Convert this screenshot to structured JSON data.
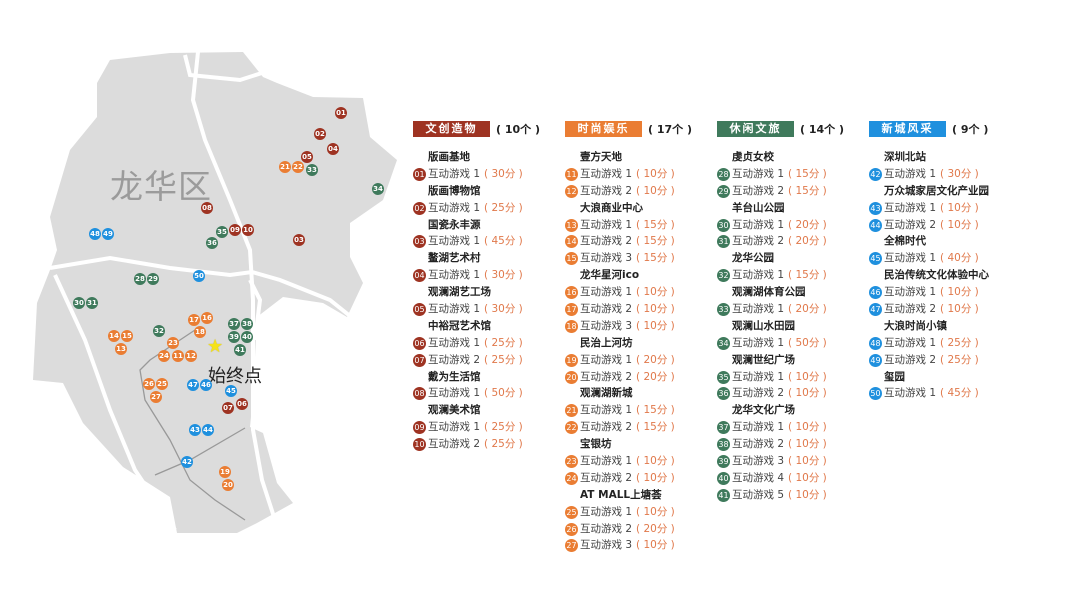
{
  "map": {
    "district_label": "龙华区",
    "origin_label": "始终点",
    "origin_icon": "star-icon"
  },
  "categories": [
    {
      "title": "文创造物",
      "count": "( 10个 )",
      "color": "#9e3322",
      "venues": [
        {
          "name": "版画基地",
          "games": [
            {
              "id": "01",
              "label": "互动游戏 1",
              "time": "( 30分 )"
            }
          ]
        },
        {
          "name": "版画博物馆",
          "games": [
            {
              "id": "02",
              "label": "互动游戏 1",
              "time": "( 25分 )"
            }
          ]
        },
        {
          "name": "国瓷永丰源",
          "games": [
            {
              "id": "03",
              "label": "互动游戏 1",
              "time": "( 45分 )"
            }
          ]
        },
        {
          "name": "鳌湖艺术村",
          "games": [
            {
              "id": "04",
              "label": "互动游戏 1",
              "time": "( 30分 )"
            }
          ]
        },
        {
          "name": "观澜湖艺工场",
          "games": [
            {
              "id": "05",
              "label": "互动游戏 1",
              "time": "( 30分 )"
            }
          ]
        },
        {
          "name": "中裕冠艺术馆",
          "games": [
            {
              "id": "06",
              "label": "互动游戏 1",
              "time": "( 25分 )"
            },
            {
              "id": "07",
              "label": "互动游戏 2",
              "time": "( 25分 )"
            }
          ]
        },
        {
          "name": "戴为生活馆",
          "games": [
            {
              "id": "08",
              "label": "互动游戏 1",
              "time": "( 50分 )"
            }
          ]
        },
        {
          "name": "观澜美术馆",
          "games": [
            {
              "id": "09",
              "label": "互动游戏 1",
              "time": "( 25分 )"
            },
            {
              "id": "10",
              "label": "互动游戏 2",
              "time": "( 25分 )"
            }
          ]
        }
      ]
    },
    {
      "title": "时尚娱乐",
      "count": "( 17个 )",
      "color": "#ea7d33",
      "venues": [
        {
          "name": "壹方天地",
          "games": [
            {
              "id": "11",
              "label": "互动游戏 1",
              "time": "( 10分 )"
            },
            {
              "id": "12",
              "label": "互动游戏 2",
              "time": "( 10分 )"
            }
          ]
        },
        {
          "name": "大浪商业中心",
          "games": [
            {
              "id": "13",
              "label": "互动游戏 1",
              "time": "( 15分 )"
            },
            {
              "id": "14",
              "label": "互动游戏 2",
              "time": "( 15分 )"
            },
            {
              "id": "15",
              "label": "互动游戏 3",
              "time": "( 15分 )"
            }
          ]
        },
        {
          "name": "龙华星河ico",
          "games": [
            {
              "id": "16",
              "label": "互动游戏 1",
              "time": "( 10分 )"
            },
            {
              "id": "17",
              "label": "互动游戏 2",
              "time": "( 10分 )"
            },
            {
              "id": "18",
              "label": "互动游戏 3",
              "time": "( 10分 )"
            }
          ]
        },
        {
          "name": "民治上河坊",
          "games": [
            {
              "id": "19",
              "label": "互动游戏 1",
              "time": "( 20分 )"
            },
            {
              "id": "20",
              "label": "互动游戏 2",
              "time": "( 20分 )"
            }
          ]
        },
        {
          "name": "观澜湖新城",
          "games": [
            {
              "id": "21",
              "label": "互动游戏 1",
              "time": "( 15分 )"
            },
            {
              "id": "22",
              "label": "互动游戏 2",
              "time": "( 15分 )"
            }
          ]
        },
        {
          "name": "宝银坊",
          "games": [
            {
              "id": "23",
              "label": "互动游戏 1",
              "time": "( 10分 )"
            },
            {
              "id": "24",
              "label": "互动游戏 2",
              "time": "( 10分 )"
            }
          ]
        },
        {
          "name": "AT MALL上塘荟",
          "games": [
            {
              "id": "25",
              "label": "互动游戏 1",
              "time": "( 10分 )"
            },
            {
              "id": "26",
              "label": "互动游戏 2",
              "time": "( 20分 )"
            },
            {
              "id": "27",
              "label": "互动游戏 3",
              "time": "( 10分 )"
            }
          ]
        }
      ]
    },
    {
      "title": "休闲文旅",
      "count": "( 14个 )",
      "color": "#3f7a5c",
      "venues": [
        {
          "name": "虔贞女校",
          "games": [
            {
              "id": "28",
              "label": "互动游戏 1",
              "time": "( 15分 )"
            },
            {
              "id": "29",
              "label": "互动游戏 2",
              "time": "( 15分 )"
            }
          ]
        },
        {
          "name": "羊台山公园",
          "games": [
            {
              "id": "30",
              "label": "互动游戏 1",
              "time": "( 20分 )"
            },
            {
              "id": "31",
              "label": "互动游戏 2",
              "time": "( 20分 )"
            }
          ]
        },
        {
          "name": "龙华公园",
          "games": [
            {
              "id": "32",
              "label": "互动游戏 1",
              "time": "( 15分 )"
            }
          ]
        },
        {
          "name": "观澜湖体育公园",
          "games": [
            {
              "id": "33",
              "label": "互动游戏 1",
              "time": "( 20分 )"
            }
          ]
        },
        {
          "name": "观澜山水田园",
          "games": [
            {
              "id": "34",
              "label": "互动游戏 1",
              "time": "( 50分 )"
            }
          ]
        },
        {
          "name": "观澜世纪广场",
          "games": [
            {
              "id": "35",
              "label": "互动游戏 1",
              "time": "( 10分 )"
            },
            {
              "id": "36",
              "label": "互动游戏 2",
              "time": "( 10分 )"
            }
          ]
        },
        {
          "name": "龙华文化广场",
          "games": [
            {
              "id": "37",
              "label": "互动游戏 1",
              "time": "( 10分 )"
            },
            {
              "id": "38",
              "label": "互动游戏 2",
              "time": "( 10分 )"
            },
            {
              "id": "39",
              "label": "互动游戏 3",
              "time": "( 10分 )"
            },
            {
              "id": "40",
              "label": "互动游戏 4",
              "time": "( 10分 )"
            },
            {
              "id": "41",
              "label": "互动游戏 5",
              "time": "( 10分 )"
            }
          ]
        }
      ]
    },
    {
      "title": "新城风采",
      "count": "( 9个 )",
      "color": "#1f90de",
      "venues": [
        {
          "name": "深圳北站",
          "games": [
            {
              "id": "42",
              "label": "互动游戏 1",
              "time": "( 30分 )"
            }
          ]
        },
        {
          "name": "万众城家居文化产业园",
          "games": [
            {
              "id": "43",
              "label": "互动游戏 1",
              "time": "( 10分 )"
            },
            {
              "id": "44",
              "label": "互动游戏 2",
              "time": "( 10分 )"
            }
          ]
        },
        {
          "name": "全棉时代",
          "games": [
            {
              "id": "45",
              "label": "互动游戏 1",
              "time": "( 40分 )"
            }
          ]
        },
        {
          "name": "民治传统文化体验中心",
          "games": [
            {
              "id": "46",
              "label": "互动游戏 1",
              "time": "( 10分 )"
            },
            {
              "id": "47",
              "label": "互动游戏 2",
              "time": "( 10分 )"
            }
          ]
        },
        {
          "name": "大浪时尚小镇",
          "games": [
            {
              "id": "48",
              "label": "互动游戏 1",
              "time": "( 25分 )"
            },
            {
              "id": "49",
              "label": "互动游戏 2",
              "time": "( 25分 )"
            }
          ]
        },
        {
          "name": "玺园",
          "games": [
            {
              "id": "50",
              "label": "互动游戏 1",
              "time": "( 45分 )"
            }
          ]
        }
      ]
    }
  ]
}
